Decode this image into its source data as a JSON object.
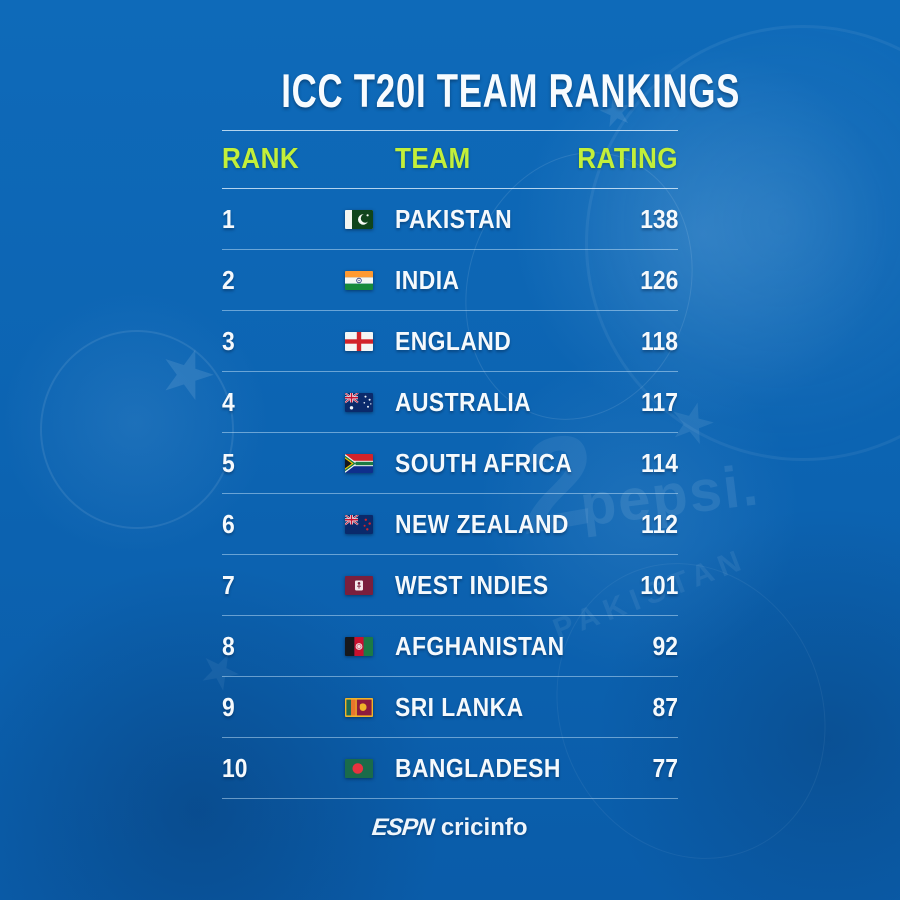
{
  "title": "ICC T20I TEAM RANKINGS",
  "table": {
    "headers": {
      "rank": "RANK",
      "team": "TEAM",
      "rating": "RATING"
    },
    "rows": [
      {
        "rank": "1",
        "team": "PAKISTAN",
        "rating": "138",
        "flag": "pakistan"
      },
      {
        "rank": "2",
        "team": "INDIA",
        "rating": "126",
        "flag": "india"
      },
      {
        "rank": "3",
        "team": "ENGLAND",
        "rating": "118",
        "flag": "england"
      },
      {
        "rank": "4",
        "team": "AUSTRALIA",
        "rating": "117",
        "flag": "australia"
      },
      {
        "rank": "5",
        "team": "SOUTH AFRICA",
        "rating": "114",
        "flag": "south-africa"
      },
      {
        "rank": "6",
        "team": "NEW ZEALAND",
        "rating": "112",
        "flag": "new-zealand"
      },
      {
        "rank": "7",
        "team": "WEST INDIES",
        "rating": "101",
        "flag": "west-indies"
      },
      {
        "rank": "8",
        "team": "AFGHANISTAN",
        "rating": "92",
        "flag": "afghanistan"
      },
      {
        "rank": "9",
        "team": "SRI LANKA",
        "rating": "87",
        "flag": "sri-lanka"
      },
      {
        "rank": "10",
        "team": "BANGLADESH",
        "rating": "77",
        "flag": "bangladesh"
      }
    ]
  },
  "footer": {
    "espn": "ESPN",
    "cricinfo": "cricinfo"
  },
  "background": {
    "watermark_number": "2",
    "watermark_sponsor": "pepsi.",
    "watermark_team": "PAKISTAN",
    "star_glyph": "★"
  },
  "colors": {
    "background_blue": "#0c63b1",
    "header_green": "#c3ef3a",
    "text_white": "#f5f9fc",
    "separator": "rgba(198,228,250,0.5)"
  },
  "chart_data": {
    "type": "table",
    "title": "ICC T20I TEAM RANKINGS",
    "columns": [
      "RANK",
      "TEAM",
      "RATING"
    ],
    "rows": [
      [
        1,
        "PAKISTAN",
        138
      ],
      [
        2,
        "INDIA",
        126
      ],
      [
        3,
        "ENGLAND",
        118
      ],
      [
        4,
        "AUSTRALIA",
        117
      ],
      [
        5,
        "SOUTH AFRICA",
        114
      ],
      [
        6,
        "NEW ZEALAND",
        112
      ],
      [
        7,
        "WEST INDIES",
        101
      ],
      [
        8,
        "AFGHANISTAN",
        92
      ],
      [
        9,
        "SRI LANKA",
        87
      ],
      [
        10,
        "BANGLADESH",
        77
      ]
    ],
    "source": "ESPN cricinfo"
  }
}
